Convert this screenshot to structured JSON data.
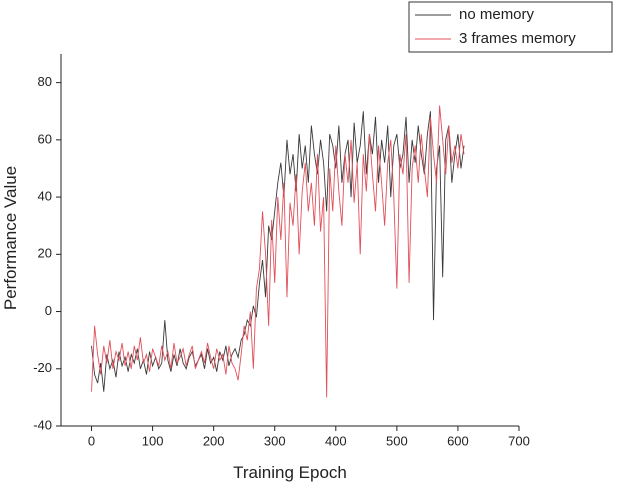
{
  "chart_data": {
    "type": "line",
    "xlabel": "Training Epoch",
    "ylabel": "Performance Value",
    "xlim": [
      -50,
      700
    ],
    "ylim": [
      -40,
      90
    ],
    "xticks": [
      0,
      100,
      200,
      300,
      400,
      500,
      600,
      700
    ],
    "yticks": [
      -40,
      -20,
      0,
      20,
      40,
      60,
      80
    ],
    "legend": "top-right",
    "grid": false,
    "x": [
      0,
      5,
      10,
      15,
      20,
      25,
      30,
      35,
      40,
      45,
      50,
      55,
      60,
      65,
      70,
      75,
      80,
      85,
      90,
      95,
      100,
      105,
      110,
      115,
      120,
      125,
      130,
      135,
      140,
      145,
      150,
      155,
      160,
      165,
      170,
      175,
      180,
      185,
      190,
      195,
      200,
      205,
      210,
      215,
      220,
      225,
      230,
      235,
      240,
      245,
      250,
      255,
      260,
      265,
      270,
      275,
      280,
      285,
      290,
      295,
      300,
      305,
      310,
      315,
      320,
      325,
      330,
      335,
      340,
      345,
      350,
      355,
      360,
      365,
      370,
      375,
      380,
      385,
      390,
      395,
      400,
      405,
      410,
      415,
      420,
      425,
      430,
      435,
      440,
      445,
      450,
      455,
      460,
      465,
      470,
      475,
      480,
      485,
      490,
      495,
      500,
      505,
      510,
      515,
      520,
      525,
      530,
      535,
      540,
      545,
      550,
      555,
      560,
      565,
      570,
      575,
      580,
      585,
      590,
      595,
      600,
      605,
      610
    ],
    "series": [
      {
        "name": "no memory",
        "color": "#3a3a3a",
        "values": [
          -12,
          -22,
          -25,
          -18,
          -28,
          -15,
          -20,
          -17,
          -23,
          -14,
          -19,
          -16,
          -21,
          -15,
          -18,
          -13,
          -20,
          -17,
          -22,
          -14,
          -19,
          -16,
          -20,
          -18,
          -3,
          -17,
          -21,
          -15,
          -19,
          -13,
          -18,
          -20,
          -16,
          -14,
          -19,
          -17,
          -15,
          -20,
          -13,
          -18,
          -16,
          -21,
          -14,
          -17,
          -12,
          -19,
          -15,
          -13,
          -16,
          -10,
          -8,
          -3,
          -5,
          2,
          -2,
          10,
          18,
          5,
          30,
          25,
          35,
          45,
          52,
          40,
          60,
          48,
          55,
          42,
          62,
          50,
          58,
          45,
          65,
          55,
          48,
          60,
          52,
          35,
          62,
          58,
          50,
          65,
          45,
          55,
          60,
          40,
          66,
          52,
          58,
          70,
          48,
          62,
          55,
          68,
          45,
          60,
          52,
          65,
          40,
          58,
          62,
          50,
          55,
          68,
          45,
          60,
          52,
          65,
          55,
          48,
          62,
          70,
          -3,
          50,
          58,
          12,
          60,
          65,
          45,
          55,
          62,
          50,
          58
        ]
      },
      {
        "name": "3 frames memory",
        "color": "#e0505a",
        "values": [
          -28,
          -5,
          -15,
          -22,
          -12,
          -18,
          -10,
          -20,
          -14,
          -17,
          -11,
          -19,
          -14,
          -20,
          -12,
          -17,
          -9,
          -18,
          -15,
          -21,
          -13,
          -16,
          -19,
          -12,
          -17,
          -14,
          -20,
          -11,
          -18,
          -16,
          -13,
          -19,
          -15,
          -12,
          -20,
          -17,
          -14,
          -18,
          -11,
          -16,
          -20,
          -13,
          -17,
          -15,
          -22,
          -12,
          -18,
          -20,
          -24,
          -15,
          -5,
          -10,
          0,
          -20,
          8,
          15,
          35,
          20,
          -5,
          32,
          10,
          40,
          25,
          45,
          5,
          38,
          30,
          48,
          20,
          42,
          52,
          35,
          45,
          30,
          55,
          28,
          40,
          -30,
          50,
          35,
          58,
          42,
          30,
          55,
          45,
          60,
          38,
          52,
          20,
          55,
          42,
          62,
          48,
          35,
          58,
          45,
          30,
          52,
          60,
          40,
          8,
          55,
          48,
          62,
          10,
          50,
          58,
          45,
          62,
          50,
          40,
          68,
          55,
          45,
          72,
          60,
          48,
          65,
          52,
          58,
          50,
          62,
          55
        ]
      }
    ]
  }
}
